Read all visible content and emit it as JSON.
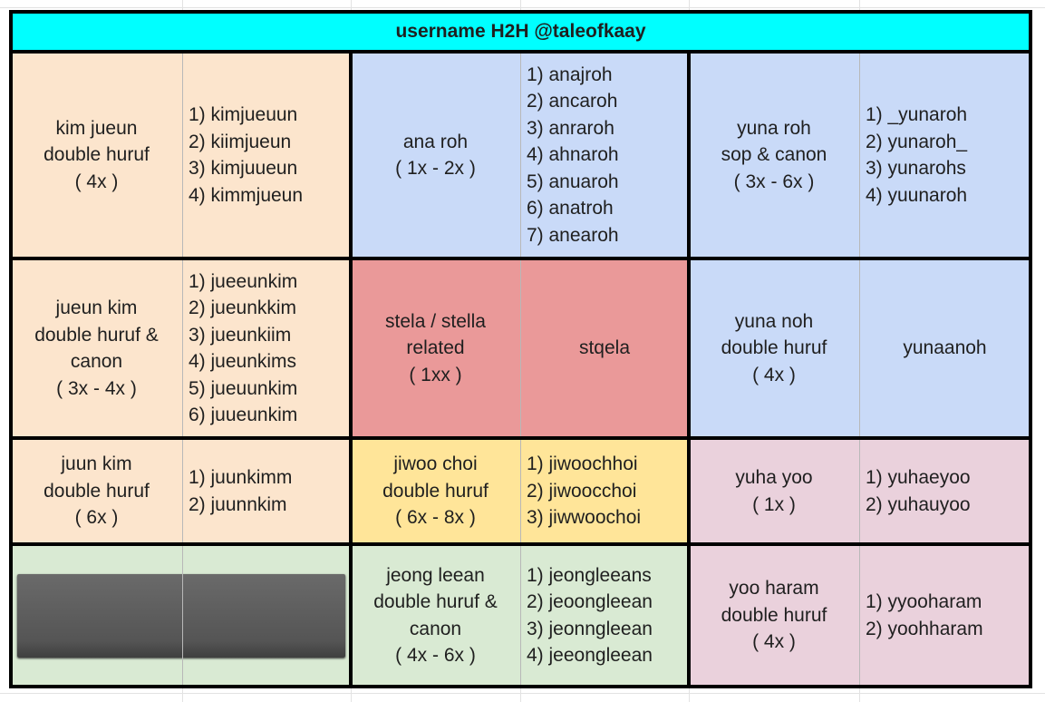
{
  "header": {
    "title": "username H2H @taleofkaay"
  },
  "rows": [
    [
      {
        "color": "#fce5cd",
        "label": [
          "kim jueun",
          "double huruf",
          "( 4x )"
        ],
        "items": [
          "1) kimjueuun",
          "2) kiimjueun",
          "3) kimjuueun",
          "4) kimmjueun"
        ]
      },
      {
        "color": "#c9daf8",
        "label": [
          "ana roh",
          "( 1x - 2x )"
        ],
        "items": [
          "1) anajroh",
          "2) ancaroh",
          "3) anraroh",
          "4) ahnaroh",
          "5) anuaroh",
          "6) anatroh",
          "7) anearoh"
        ]
      },
      {
        "color": "#c9daf8",
        "label": [
          "yuna roh",
          "sop & canon",
          "( 3x - 6x )"
        ],
        "items": [
          "1) _yunaroh",
          "2) yunaroh_",
          "3) yunarohs",
          "4) yuunaroh"
        ]
      }
    ],
    [
      {
        "color": "#fce5cd",
        "label": [
          "jueun kim",
          "double huruf &",
          "canon",
          "( 3x - 4x )"
        ],
        "items": [
          "1) jueeunkim",
          "2) jueunkkim",
          "3) jueunkiim",
          "4) jueunkims",
          "5) jueuunkim",
          "6) juueunkim"
        ]
      },
      {
        "color": "#ea9999",
        "label": [
          "stela / stella",
          "related",
          "( 1xx )"
        ],
        "items": [
          "stqela"
        ]
      },
      {
        "color": "#c9daf8",
        "label": [
          "yuna noh",
          "double huruf",
          "( 4x )"
        ],
        "items": [
          "yunaanoh"
        ]
      }
    ],
    [
      {
        "color": "#fce5cd",
        "label": [
          "juun kim",
          "double huruf",
          "( 6x )"
        ],
        "items": [
          "1) juunkimm",
          "2) juunnkim"
        ]
      },
      {
        "color": "#ffe599",
        "label": [
          "jiwoo choi",
          "double huruf",
          "( 6x - 8x )"
        ],
        "items": [
          "1) jiwoochhoi",
          "2) jiwoocchoi",
          "3) jiwwoochoi"
        ]
      },
      {
        "color": "#ead1dc",
        "label": [
          "yuha yoo",
          "( 1x )"
        ],
        "items": [
          "1) yuhaeyoo",
          "2) yuhauyoo"
        ]
      }
    ],
    [
      {
        "color": "#d9ead3",
        "label": [],
        "items": []
      },
      {
        "color": "#d9ead3",
        "label": [
          "jeong leean",
          "double huruf &",
          "canon",
          "( 4x - 6x )"
        ],
        "items": [
          "1) jeongleeans",
          "2) jeoongleean",
          "3) jeonngleean",
          "4) jeeongleean"
        ]
      },
      {
        "color": "#ead1dc",
        "label": [
          "yoo haram",
          "double huruf",
          "( 4x )"
        ],
        "items": [
          "1) yyooharam",
          "2) yoohharam"
        ]
      }
    ]
  ]
}
